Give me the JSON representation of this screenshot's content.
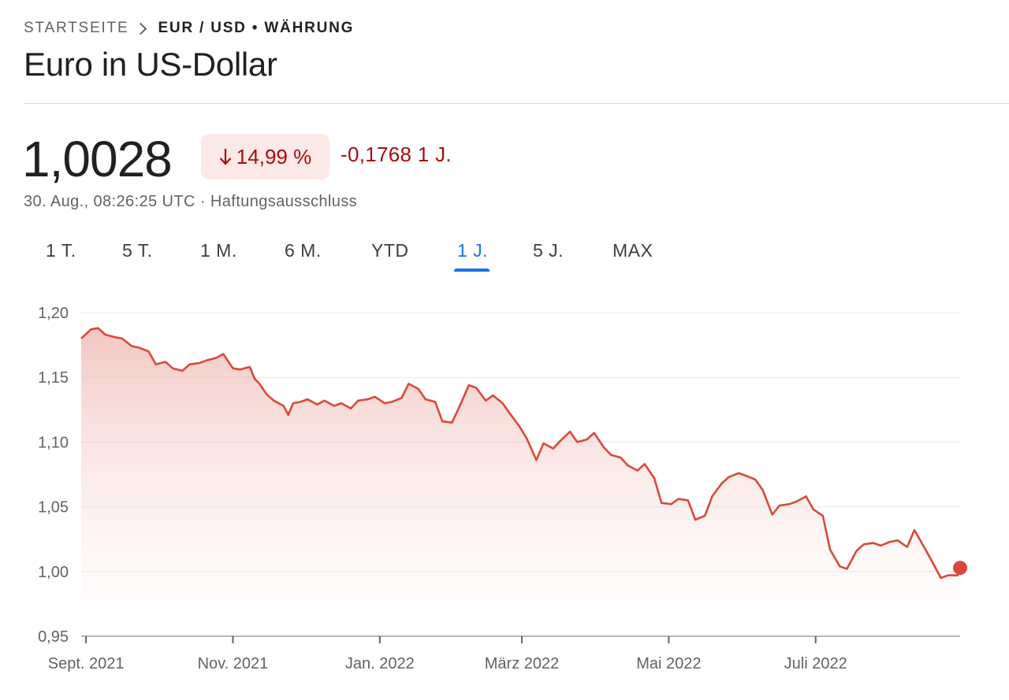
{
  "breadcrumb": {
    "home": "STARTSEITE",
    "current": "EUR / USD • WÄHRUNG"
  },
  "title": "Euro in US-Dollar",
  "quote": {
    "price": "1,0028",
    "change_percent": "14,99 %",
    "change_absolute": "-0,1768 1 J.",
    "timestamp": "30. Aug., 08:26:25 UTC",
    "separator": "·",
    "disclaimer": "Haftungsausschluss"
  },
  "colors": {
    "negative": "#a50e0e",
    "negative_bg": "#fce8e6",
    "line": "#d9493b",
    "tab_active": "#1a73e8"
  },
  "icons": {
    "change_direction": "arrow-down-icon",
    "breadcrumb_separator": "chevron-right-icon"
  },
  "tabs": [
    {
      "label": "1 T.",
      "active": false
    },
    {
      "label": "5 T.",
      "active": false
    },
    {
      "label": "1 M.",
      "active": false
    },
    {
      "label": "6 M.",
      "active": false
    },
    {
      "label": "YTD",
      "active": false
    },
    {
      "label": "1 J.",
      "active": true
    },
    {
      "label": "5 J.",
      "active": false
    },
    {
      "label": "MAX",
      "active": false
    }
  ],
  "chart_data": {
    "type": "area",
    "title": "",
    "xlabel": "",
    "ylabel": "",
    "ylim": [
      0.95,
      1.2
    ],
    "xlim": [
      "2021-08-30",
      "2022-08-30"
    ],
    "grid": true,
    "legend": "none",
    "y_ticks": [
      {
        "value": 1.2,
        "label": "1,20"
      },
      {
        "value": 1.15,
        "label": "1,15"
      },
      {
        "value": 1.1,
        "label": "1,10"
      },
      {
        "value": 1.05,
        "label": "1,05"
      },
      {
        "value": 1.0,
        "label": "1,00"
      },
      {
        "value": 0.95,
        "label": "0,95"
      }
    ],
    "x_ticks": [
      {
        "date": "2021-09-01",
        "label": "Sept. 2021"
      },
      {
        "date": "2021-11-01",
        "label": "Nov. 2021"
      },
      {
        "date": "2022-01-01",
        "label": "Jan. 2022"
      },
      {
        "date": "2022-03-01",
        "label": "März 2022"
      },
      {
        "date": "2022-05-01",
        "label": "Mai 2022"
      },
      {
        "date": "2022-07-01",
        "label": "Juli 2022"
      }
    ],
    "series": [
      {
        "name": "",
        "points": [
          [
            "2021-08-30",
            1.18
          ],
          [
            "2021-09-03",
            1.187
          ],
          [
            "2021-09-06",
            1.188
          ],
          [
            "2021-09-09",
            1.183
          ],
          [
            "2021-09-13",
            1.181
          ],
          [
            "2021-09-16",
            1.18
          ],
          [
            "2021-09-20",
            1.174
          ],
          [
            "2021-09-23",
            1.173
          ],
          [
            "2021-09-27",
            1.17
          ],
          [
            "2021-09-30",
            1.16
          ],
          [
            "2021-10-04",
            1.162
          ],
          [
            "2021-10-07",
            1.157
          ],
          [
            "2021-10-11",
            1.155
          ],
          [
            "2021-10-14",
            1.16
          ],
          [
            "2021-10-18",
            1.161
          ],
          [
            "2021-10-21",
            1.163
          ],
          [
            "2021-10-25",
            1.165
          ],
          [
            "2021-10-28",
            1.168
          ],
          [
            "2021-11-01",
            1.157
          ],
          [
            "2021-11-04",
            1.156
          ],
          [
            "2021-11-08",
            1.158
          ],
          [
            "2021-11-10",
            1.149
          ],
          [
            "2021-11-12",
            1.145
          ],
          [
            "2021-11-15",
            1.137
          ],
          [
            "2021-11-18",
            1.132
          ],
          [
            "2021-11-22",
            1.128
          ],
          [
            "2021-11-24",
            1.121
          ],
          [
            "2021-11-26",
            1.13
          ],
          [
            "2021-11-29",
            1.131
          ],
          [
            "2021-12-02",
            1.133
          ],
          [
            "2021-12-06",
            1.129
          ],
          [
            "2021-12-09",
            1.132
          ],
          [
            "2021-12-13",
            1.128
          ],
          [
            "2021-12-16",
            1.13
          ],
          [
            "2021-12-20",
            1.126
          ],
          [
            "2021-12-23",
            1.132
          ],
          [
            "2021-12-27",
            1.133
          ],
          [
            "2021-12-30",
            1.135
          ],
          [
            "2022-01-03",
            1.13
          ],
          [
            "2022-01-06",
            1.131
          ],
          [
            "2022-01-10",
            1.134
          ],
          [
            "2022-01-13",
            1.145
          ],
          [
            "2022-01-17",
            1.141
          ],
          [
            "2022-01-20",
            1.133
          ],
          [
            "2022-01-24",
            1.131
          ],
          [
            "2022-01-27",
            1.116
          ],
          [
            "2022-01-31",
            1.115
          ],
          [
            "2022-02-03",
            1.127
          ],
          [
            "2022-02-07",
            1.144
          ],
          [
            "2022-02-10",
            1.142
          ],
          [
            "2022-02-14",
            1.132
          ],
          [
            "2022-02-17",
            1.136
          ],
          [
            "2022-02-21",
            1.13
          ],
          [
            "2022-02-24",
            1.122
          ],
          [
            "2022-02-28",
            1.112
          ],
          [
            "2022-03-03",
            1.103
          ],
          [
            "2022-03-07",
            1.086
          ],
          [
            "2022-03-10",
            1.099
          ],
          [
            "2022-03-14",
            1.095
          ],
          [
            "2022-03-17",
            1.101
          ],
          [
            "2022-03-21",
            1.108
          ],
          [
            "2022-03-24",
            1.1
          ],
          [
            "2022-03-28",
            1.102
          ],
          [
            "2022-03-31",
            1.107
          ],
          [
            "2022-04-04",
            1.096
          ],
          [
            "2022-04-07",
            1.09
          ],
          [
            "2022-04-11",
            1.088
          ],
          [
            "2022-04-14",
            1.082
          ],
          [
            "2022-04-18",
            1.078
          ],
          [
            "2022-04-21",
            1.083
          ],
          [
            "2022-04-25",
            1.072
          ],
          [
            "2022-04-28",
            1.053
          ],
          [
            "2022-05-02",
            1.052
          ],
          [
            "2022-05-05",
            1.056
          ],
          [
            "2022-05-09",
            1.055
          ],
          [
            "2022-05-12",
            1.04
          ],
          [
            "2022-05-16",
            1.043
          ],
          [
            "2022-05-19",
            1.058
          ],
          [
            "2022-05-23",
            1.068
          ],
          [
            "2022-05-26",
            1.073
          ],
          [
            "2022-05-30",
            1.076
          ],
          [
            "2022-06-02",
            1.074
          ],
          [
            "2022-06-06",
            1.071
          ],
          [
            "2022-06-09",
            1.063
          ],
          [
            "2022-06-13",
            1.044
          ],
          [
            "2022-06-16",
            1.051
          ],
          [
            "2022-06-20",
            1.052
          ],
          [
            "2022-06-23",
            1.054
          ],
          [
            "2022-06-27",
            1.058
          ],
          [
            "2022-06-30",
            1.048
          ],
          [
            "2022-07-04",
            1.043
          ],
          [
            "2022-07-07",
            1.017
          ],
          [
            "2022-07-11",
            1.004
          ],
          [
            "2022-07-14",
            1.002
          ],
          [
            "2022-07-18",
            1.016
          ],
          [
            "2022-07-21",
            1.021
          ],
          [
            "2022-07-25",
            1.022
          ],
          [
            "2022-07-28",
            1.02
          ],
          [
            "2022-08-01",
            1.023
          ],
          [
            "2022-08-04",
            1.024
          ],
          [
            "2022-08-08",
            1.019
          ],
          [
            "2022-08-11",
            1.032
          ],
          [
            "2022-08-15",
            1.019
          ],
          [
            "2022-08-18",
            1.009
          ],
          [
            "2022-08-22",
            0.995
          ],
          [
            "2022-08-25",
            0.997
          ],
          [
            "2022-08-29",
            0.997
          ],
          [
            "2022-08-30",
            1.0028
          ]
        ]
      }
    ],
    "last_point": {
      "date": "2022-08-30",
      "value": 1.0028
    }
  }
}
